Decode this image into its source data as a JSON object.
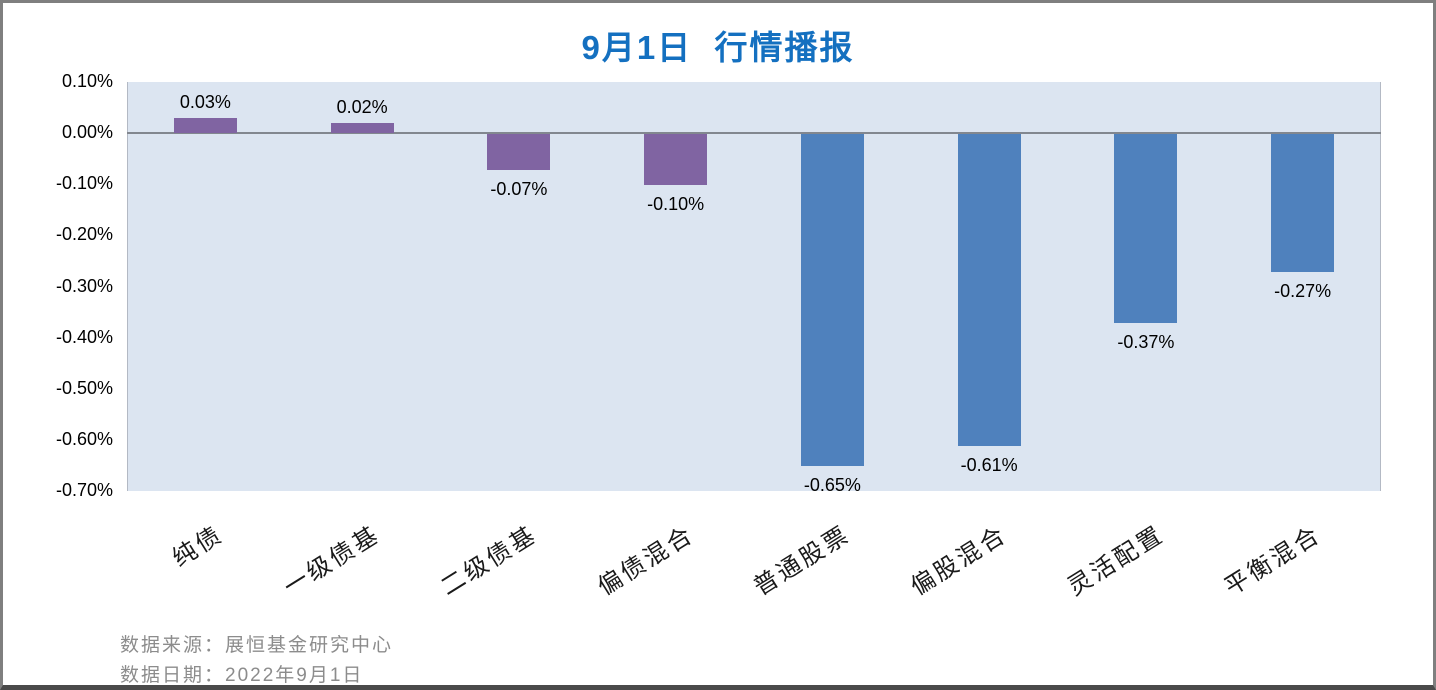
{
  "title": "9月1日  行情播报",
  "colors": {
    "title_text": "#1470C0",
    "plot_background": "#DCE5F1",
    "bond_bar_purple": "#8064A2",
    "equity_bar_blue": "#4F81BD",
    "axis_line": "#82878F",
    "footer_text": "#8C8C8C"
  },
  "chart_data": {
    "type": "bar",
    "title": "9月1日  行情播报",
    "unit": "%",
    "categories": [
      "纯债",
      "一级债基",
      "二级债基",
      "偏债混合",
      "普通股票",
      "偏股混合",
      "灵活配置",
      "平衡混合"
    ],
    "values": [
      0.03,
      0.02,
      -0.07,
      -0.1,
      -0.65,
      -0.61,
      -0.37,
      -0.27
    ],
    "value_labels": [
      "0.03%",
      "0.02%",
      "-0.07%",
      "-0.10%",
      "-0.65%",
      "-0.61%",
      "-0.37%",
      "-0.27%"
    ],
    "bar_colors": [
      "#8064A2",
      "#8064A2",
      "#8064A2",
      "#8064A2",
      "#4F81BD",
      "#4F81BD",
      "#4F81BD",
      "#4F81BD"
    ],
    "yticks": [
      "0.10%",
      "0.00%",
      "-0.10%",
      "-0.20%",
      "-0.30%",
      "-0.40%",
      "-0.50%",
      "-0.60%",
      "-0.70%"
    ],
    "ylim": [
      -0.7,
      0.1
    ],
    "ytick_step": 0.1,
    "grid": false,
    "legend": "none",
    "xlabel": "",
    "ylabel": ""
  },
  "footer": {
    "source": "数据来源：展恒基金研究中心",
    "date": "数据日期：2022年9月1日"
  }
}
